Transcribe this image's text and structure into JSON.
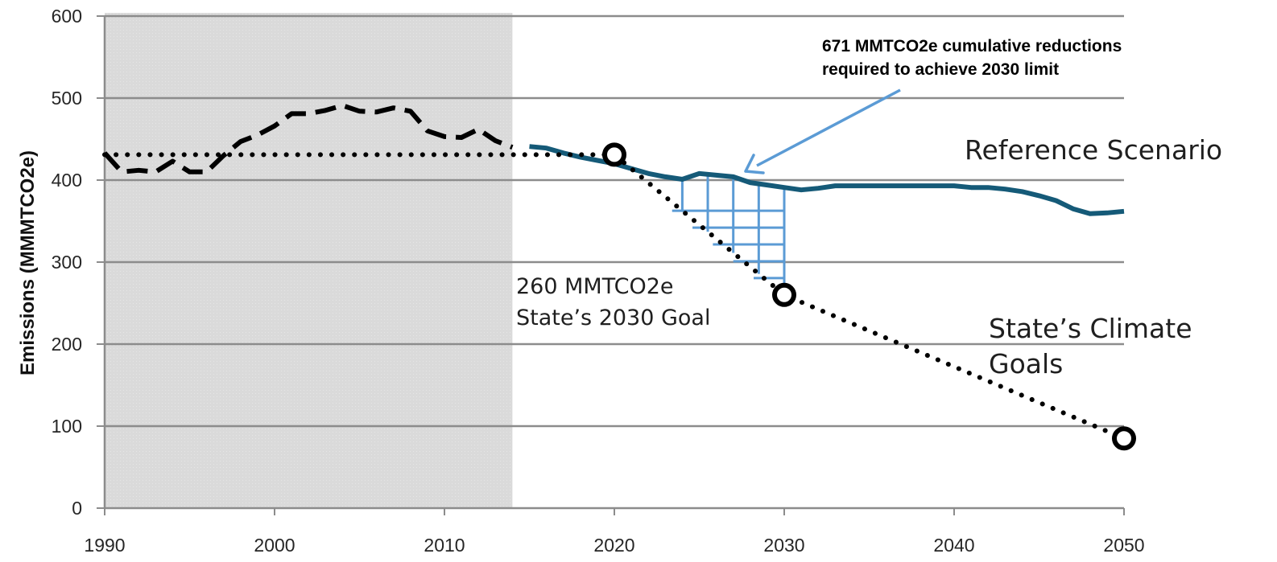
{
  "chart_data": {
    "type": "line",
    "title": "",
    "xlabel": "",
    "ylabel": "Emissions (MMMTCO2e)",
    "xlim": [
      1990,
      2050
    ],
    "ylim": [
      0,
      600
    ],
    "x_ticks": [
      1990,
      2000,
      2010,
      2020,
      2030,
      2040,
      2050
    ],
    "y_ticks": [
      0,
      100,
      200,
      300,
      400,
      500,
      600
    ],
    "grid": "horizontal",
    "historical_shading": [
      1990,
      2014
    ],
    "series": [
      {
        "style": "dashed",
        "color": "#000000",
        "x": [
          1990,
          1991,
          1992,
          1993,
          1994,
          1995,
          1996,
          1997,
          1998,
          1999,
          2000,
          2001,
          2002,
          2003,
          2004,
          2005,
          2006,
          2007,
          2008,
          2009,
          2010,
          2011,
          2012,
          2013,
          2014
        ],
        "y": [
          433,
          410,
          412,
          410,
          423,
          410,
          410,
          430,
          447,
          455,
          466,
          481,
          481,
          485,
          491,
          484,
          483,
          488,
          484,
          460,
          453,
          452,
          462,
          448,
          440
        ]
      },
      {
        "name": "Reference Scenario",
        "style": "solid",
        "color": "#155a78",
        "x": [
          2015,
          2016,
          2017,
          2018,
          2019,
          2020,
          2021,
          2022,
          2023,
          2024,
          2025,
          2026,
          2027,
          2028,
          2029,
          2030,
          2031,
          2032,
          2033,
          2034,
          2035,
          2036,
          2037,
          2038,
          2039,
          2040,
          2041,
          2042,
          2043,
          2044,
          2045,
          2046,
          2047,
          2048,
          2049,
          2050
        ],
        "y": [
          441,
          439,
          433,
          428,
          424,
          420,
          414,
          408,
          404,
          401,
          408,
          406,
          404,
          397,
          394,
          391,
          388,
          390,
          393,
          393,
          393,
          393,
          393,
          393,
          393,
          393,
          391,
          391,
          389,
          386,
          381,
          375,
          365,
          359,
          360,
          362
        ]
      },
      {
        "name": "State's Climate Goals",
        "style": "dotted",
        "color": "#000000",
        "x": [
          1990,
          2020,
          2030,
          2050
        ],
        "y": [
          431,
          431,
          260,
          85
        ]
      }
    ],
    "goal_markers": [
      {
        "x": 2020,
        "y": 431
      },
      {
        "x": 2030,
        "y": 260
      },
      {
        "x": 2050,
        "y": 85
      }
    ],
    "reduction_wedge": {
      "x_start": 2024,
      "x_end": 2030,
      "color": "#5b9bd5"
    },
    "annotations": {
      "reference_label": "Reference Scenario",
      "goals_label_line1": "State’s Climate",
      "goals_label_line2": "Goals",
      "goal_2030_line1": "260 MMTCO2e",
      "goal_2030_line2": "State’s 2030 Goal",
      "reductions_line1": "671 MMTCO2e cumulative reductions",
      "reductions_line2": "required to achieve 2030 limit"
    }
  }
}
